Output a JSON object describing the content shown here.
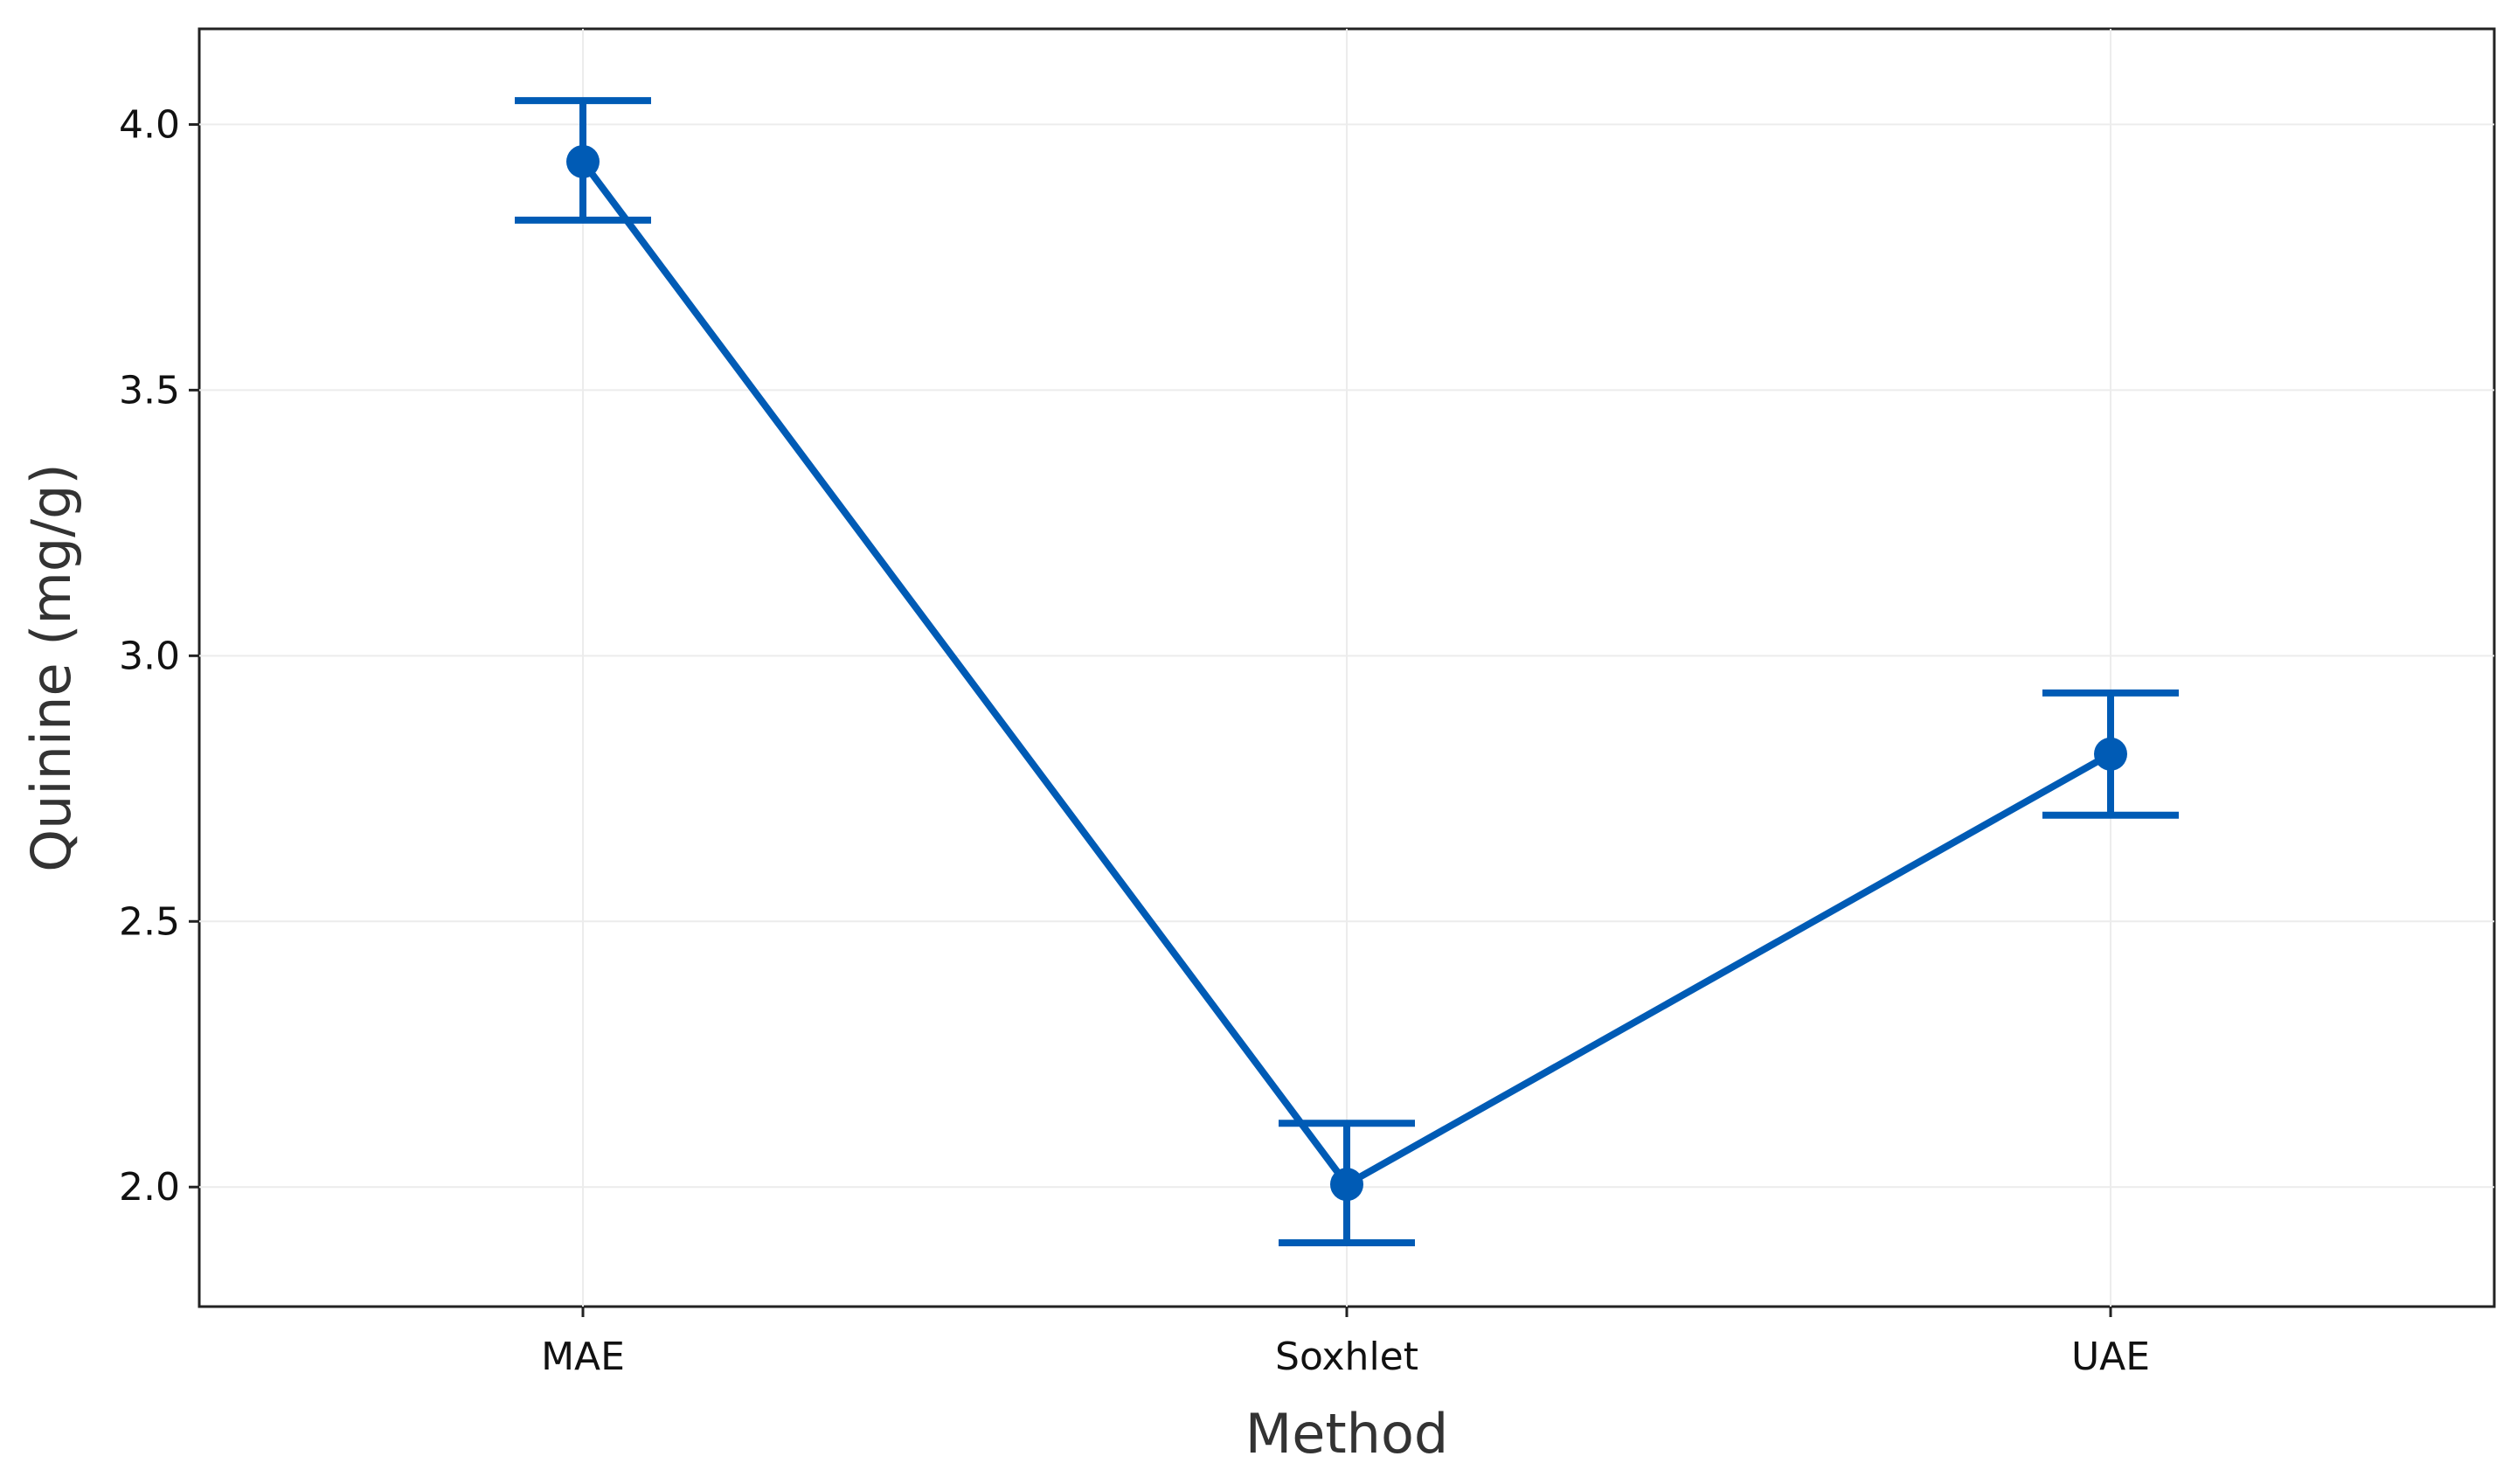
{
  "chart_data": {
    "type": "line",
    "title": "",
    "xlabel": "Method",
    "ylabel": "Quinine (mg/g)",
    "categories": [
      "MAE",
      "Soxhlet",
      "UAE"
    ],
    "series": [
      {
        "values": [
          3.93,
          2.005,
          2.815
        ],
        "error_low": [
          3.82,
          1.895,
          2.7
        ],
        "error_high": [
          4.045,
          2.12,
          2.93
        ]
      }
    ],
    "ylim": [
      1.775,
      4.18
    ],
    "yticks": [
      2.0,
      2.5,
      3.0,
      3.5,
      4.0
    ],
    "ytick_labels": [
      "2.0",
      "2.5",
      "3.0",
      "3.5",
      "4.0"
    ],
    "grid": true,
    "legend": "none",
    "colors": {
      "series": "#005bb5"
    }
  }
}
